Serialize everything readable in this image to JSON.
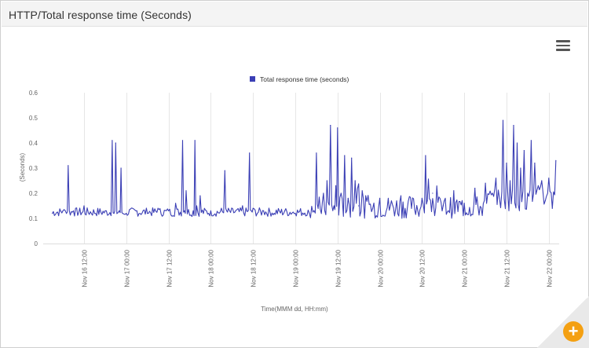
{
  "panel": {
    "title": "HTTP/Total response time (Seconds)"
  },
  "icons": {
    "menu": "hamburger-menu-icon",
    "zoom": "plus-icon"
  },
  "colors": {
    "series": "#3b3fb5",
    "zoom_button": "#f4a012"
  },
  "chart_data": {
    "type": "line",
    "title": "",
    "xlabel": "Time(MMM dd, HH:mm)",
    "ylabel": "(Seconds)",
    "ylim": [
      0,
      0.6
    ],
    "yticks": [
      "0",
      "0.1",
      "0.2",
      "0.3",
      "0.4",
      "0.5",
      "0.6"
    ],
    "xticks": [
      "Nov 16 12:00",
      "Nov 17 00:00",
      "Nov 17 12:00",
      "Nov 18 00:00",
      "Nov 18 12:00",
      "Nov 19 00:00",
      "Nov 19 12:00",
      "Nov 20 00:00",
      "Nov 20 12:00",
      "Nov 21 00:00",
      "Nov 21 12:00",
      "Nov 22 00:00"
    ],
    "grid": true,
    "legend": "top-center",
    "series": [
      {
        "name": "Total response time (seconds)",
        "x": [
          "Nov 16 03:00",
          "Nov 16 06:00",
          "Nov 16 07:00",
          "Nov 16 07:30",
          "Nov 16 09:00",
          "Nov 16 12:00",
          "Nov 16 15:00",
          "Nov 16 18:00",
          "Nov 16 20:00",
          "Nov 16 20:30",
          "Nov 16 21:00",
          "Nov 16 22:00",
          "Nov 16 22:30",
          "Nov 16 23:00",
          "Nov 17 00:00",
          "Nov 17 03:00",
          "Nov 17 06:00",
          "Nov 17 09:00",
          "Nov 17 12:00",
          "Nov 17 14:00",
          "Nov 17 16:00",
          "Nov 17 16:30",
          "Nov 17 17:00",
          "Nov 17 19:00",
          "Nov 17 19:30",
          "Nov 17 20:00",
          "Nov 17 21:00",
          "Nov 18 00:00",
          "Nov 18 03:00",
          "Nov 18 04:00",
          "Nov 18 04:30",
          "Nov 18 05:00",
          "Nov 18 09:00",
          "Nov 18 11:00",
          "Nov 18 11:30",
          "Nov 18 12:00",
          "Nov 18 15:00",
          "Nov 18 18:00",
          "Nov 18 21:00",
          "Nov 19 00:00",
          "Nov 19 03:00",
          "Nov 19 04:00",
          "Nov 19 06:00",
          "Nov 19 06:30",
          "Nov 19 08:00",
          "Nov 19 09:00",
          "Nov 19 10:00",
          "Nov 19 11:00",
          "Nov 19 11:30",
          "Nov 19 12:00",
          "Nov 19 13:00",
          "Nov 19 14:00",
          "Nov 19 15:00",
          "Nov 19 16:00",
          "Nov 19 17:00",
          "Nov 19 18:00",
          "Nov 19 19:00",
          "Nov 19 20:00",
          "Nov 19 22:00",
          "Nov 20 00:00",
          "Nov 20 03:00",
          "Nov 20 06:00",
          "Nov 20 09:00",
          "Nov 20 12:00",
          "Nov 20 13:00",
          "Nov 20 13:30",
          "Nov 20 15:00",
          "Nov 20 18:00",
          "Nov 20 21:00",
          "Nov 21 00:00",
          "Nov 21 03:00",
          "Nov 21 06:00",
          "Nov 21 08:00",
          "Nov 21 09:00",
          "Nov 21 10:00",
          "Nov 21 11:00",
          "Nov 21 12:00",
          "Nov 21 13:00",
          "Nov 21 14:00",
          "Nov 21 15:00",
          "Nov 21 16:00",
          "Nov 21 17:00",
          "Nov 21 18:00",
          "Nov 21 19:00",
          "Nov 21 20:00",
          "Nov 21 21:00",
          "Nov 21 22:00",
          "Nov 21 23:00",
          "Nov 22 00:00",
          "Nov 22 01:00",
          "Nov 22 02:00"
        ],
        "y": [
          0.12,
          0.13,
          0.12,
          0.31,
          0.13,
          0.15,
          0.12,
          0.13,
          0.41,
          0.12,
          0.4,
          0.13,
          0.3,
          0.12,
          0.12,
          0.13,
          0.12,
          0.14,
          0.13,
          0.16,
          0.41,
          0.13,
          0.21,
          0.13,
          0.41,
          0.15,
          0.19,
          0.13,
          0.14,
          0.29,
          0.13,
          0.14,
          0.15,
          0.36,
          0.13,
          0.14,
          0.13,
          0.12,
          0.13,
          0.12,
          0.11,
          0.12,
          0.36,
          0.14,
          0.2,
          0.25,
          0.47,
          0.15,
          0.23,
          0.46,
          0.2,
          0.35,
          0.18,
          0.34,
          0.25,
          0.15,
          0.21,
          0.19,
          0.14,
          0.18,
          0.15,
          0.19,
          0.14,
          0.18,
          0.35,
          0.17,
          0.2,
          0.15,
          0.21,
          0.16,
          0.22,
          0.24,
          0.2,
          0.26,
          0.18,
          0.49,
          0.32,
          0.25,
          0.47,
          0.4,
          0.3,
          0.37,
          0.2,
          0.41,
          0.32,
          0.23,
          0.25,
          0.17,
          0.26,
          0.14,
          0.33
        ]
      }
    ]
  }
}
